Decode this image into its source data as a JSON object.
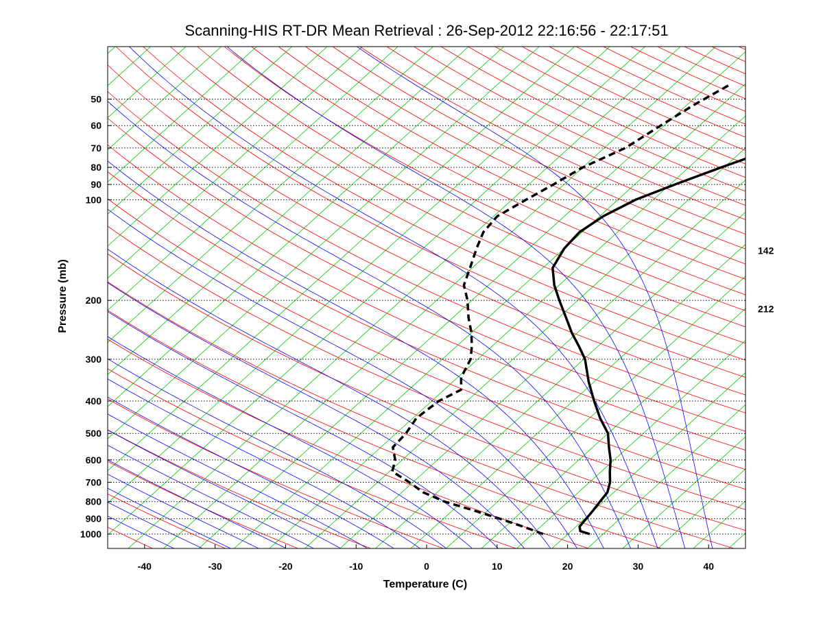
{
  "chart_data": {
    "type": "line",
    "subtype": "skew-t log-p diagram",
    "title": "Scanning-HIS RT-DR Mean Retrieval : 26-Sep-2012 22:16:56 - 22:17:51",
    "xlabel": "Temperature (C)",
    "ylabel": "Pressure (mb)",
    "xlim": [
      -45,
      45
    ],
    "ylim": [
      1100,
      45
    ],
    "x_ticks": [
      -40,
      -30,
      -20,
      -10,
      0,
      10,
      20,
      30,
      40
    ],
    "y_ticks": [
      50,
      60,
      70,
      80,
      90,
      100,
      200,
      300,
      400,
      500,
      600,
      700,
      800,
      900,
      1000
    ],
    "grid": "horizontal dotted lines at pressure ticks",
    "right_annotations": [
      {
        "label": "142",
        "pressure": 142
      },
      {
        "label": "212",
        "pressure": 212
      }
    ],
    "background_colors": {
      "dry_adiabats": "#ff0000",
      "moist_adiabats": "#0000ff",
      "isotherms": "#00c800"
    },
    "series": [
      {
        "name": "Temperature",
        "style": "solid",
        "color": "#000000",
        "points": [
          {
            "p": 1000,
            "t": 23.1
          },
          {
            "p": 980,
            "t": 21.3
          },
          {
            "p": 950,
            "t": 20.5
          },
          {
            "p": 900,
            "t": 20.2
          },
          {
            "p": 850,
            "t": 19.9
          },
          {
            "p": 800,
            "t": 19.5
          },
          {
            "p": 750,
            "t": 19.1
          },
          {
            "p": 700,
            "t": 17.9
          },
          {
            "p": 650,
            "t": 16.2
          },
          {
            "p": 600,
            "t": 14.5
          },
          {
            "p": 550,
            "t": 12.3
          },
          {
            "p": 500,
            "t": 10.0
          },
          {
            "p": 450,
            "t": 6.5
          },
          {
            "p": 400,
            "t": 3.0
          },
          {
            "p": 350,
            "t": -0.8
          },
          {
            "p": 300,
            "t": -4.8
          },
          {
            "p": 275,
            "t": -7.6
          },
          {
            "p": 250,
            "t": -10.8
          },
          {
            "p": 225,
            "t": -14.0
          },
          {
            "p": 200,
            "t": -17.6
          },
          {
            "p": 180,
            "t": -20.7
          },
          {
            "p": 160,
            "t": -23.6
          },
          {
            "p": 140,
            "t": -25.0
          },
          {
            "p": 125,
            "t": -25.4
          },
          {
            "p": 112,
            "t": -24.5
          },
          {
            "p": 100,
            "t": -22.5
          },
          {
            "p": 90,
            "t": -19.3
          },
          {
            "p": 80,
            "t": -15.4
          },
          {
            "p": 70,
            "t": -10.7
          },
          {
            "p": 60,
            "t": -5.6
          },
          {
            "p": 52,
            "t": -1.2
          },
          {
            "p": 45,
            "t": 2.8
          }
        ]
      },
      {
        "name": "Dewpoint",
        "style": "dashed",
        "color": "#000000",
        "points": [
          {
            "p": 1000,
            "t": 16.5
          },
          {
            "p": 950,
            "t": 12.5
          },
          {
            "p": 900,
            "t": 8.0
          },
          {
            "p": 850,
            "t": 3.0
          },
          {
            "p": 800,
            "t": -2.5
          },
          {
            "p": 750,
            "t": -7.0
          },
          {
            "p": 700,
            "t": -10.5
          },
          {
            "p": 650,
            "t": -14.6
          },
          {
            "p": 600,
            "t": -16.0
          },
          {
            "p": 550,
            "t": -18.3
          },
          {
            "p": 500,
            "t": -18.6
          },
          {
            "p": 450,
            "t": -19.5
          },
          {
            "p": 400,
            "t": -19.0
          },
          {
            "p": 370,
            "t": -17.6
          },
          {
            "p": 340,
            "t": -19.5
          },
          {
            "p": 300,
            "t": -21.0
          },
          {
            "p": 275,
            "t": -22.8
          },
          {
            "p": 250,
            "t": -25.0
          },
          {
            "p": 225,
            "t": -27.8
          },
          {
            "p": 200,
            "t": -30.6
          },
          {
            "p": 180,
            "t": -33.5
          },
          {
            "p": 160,
            "t": -35.3
          },
          {
            "p": 140,
            "t": -37.4
          },
          {
            "p": 125,
            "t": -39.0
          },
          {
            "p": 112,
            "t": -39.5
          },
          {
            "p": 100,
            "t": -38.0
          },
          {
            "p": 90,
            "t": -36.5
          },
          {
            "p": 80,
            "t": -35.0
          },
          {
            "p": 70,
            "t": -32.0
          },
          {
            "p": 60,
            "t": -30.5
          },
          {
            "p": 52,
            "t": -29.0
          },
          {
            "p": 45,
            "t": -27.0
          }
        ]
      }
    ]
  }
}
